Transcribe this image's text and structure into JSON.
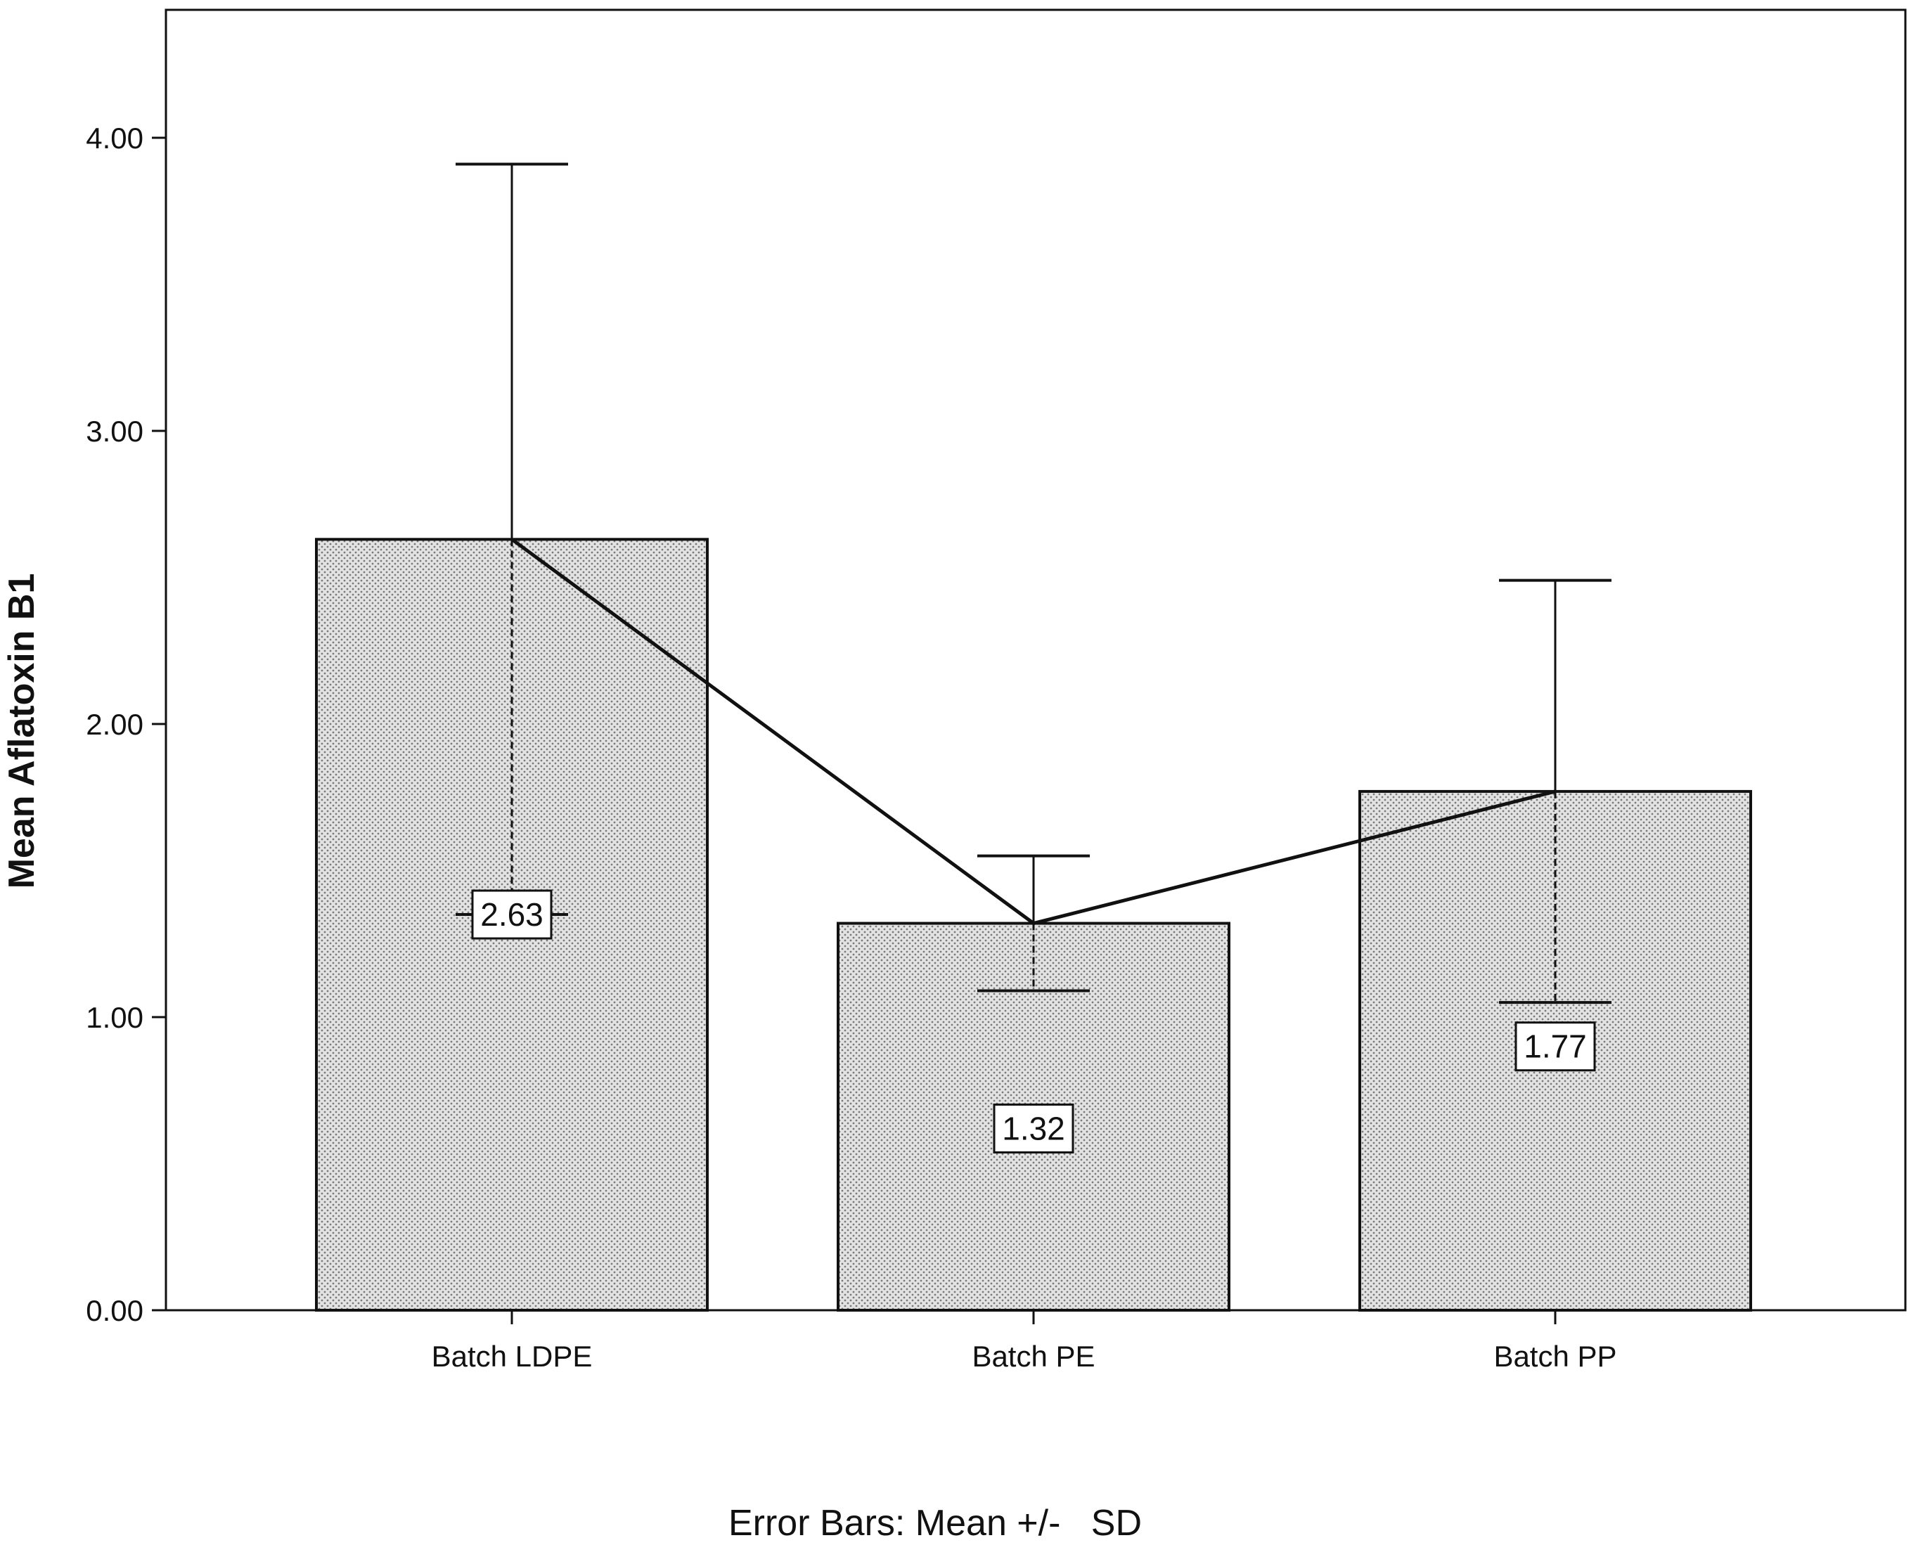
{
  "chart_data": {
    "type": "bar",
    "categories": [
      "Batch LDPE",
      "Batch PE",
      "Batch PP"
    ],
    "values": [
      2.63,
      1.32,
      1.77
    ],
    "value_labels": [
      "2.63",
      "1.32",
      "1.77"
    ],
    "error_bars": {
      "type": "SD",
      "lower": [
        1.35,
        1.09,
        1.05
      ],
      "upper": [
        3.91,
        1.55,
        2.49
      ]
    },
    "mean_line": true,
    "ylabel": "Mean Aflatoxin B1",
    "xlabel": "",
    "ylim": [
      0,
      4.4
    ],
    "yticks": [
      0,
      1,
      2,
      3,
      4
    ],
    "ytick_labels": [
      "0.00",
      "1.00",
      "2.00",
      "3.00",
      "4.00"
    ],
    "footnote": "Error Bars: Mean +/-   SD",
    "bar_fill": "dotted gray pattern",
    "colors": {
      "bar_fill": "#e3e3e3",
      "bar_dots": "#7a7a7a",
      "line": "#111111"
    },
    "grid": false,
    "legend": "none"
  }
}
